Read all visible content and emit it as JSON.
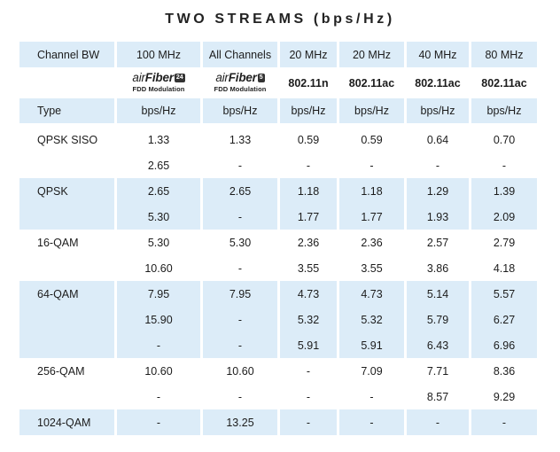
{
  "title": "TWO STREAMS (bps/Hz)",
  "header": {
    "label": "Channel BW",
    "cols": [
      "100 MHz",
      "All Channels",
      "20 MHz",
      "20 MHz",
      "40 MHz",
      "80 MHz"
    ]
  },
  "products": {
    "af24": {
      "prefix": "air",
      "main": "Fiber",
      "badge": "24",
      "sub": "FDD Modulation"
    },
    "af5": {
      "prefix": "air",
      "main": "Fiber",
      "badge": "5",
      "sub": "FDD Modulation"
    },
    "std": [
      "802.11n",
      "802.11ac",
      "802.11ac",
      "802.11ac"
    ]
  },
  "units": {
    "label": "Type",
    "cols": [
      "bps/Hz",
      "bps/Hz",
      "bps/Hz",
      "bps/Hz",
      "bps/Hz",
      "bps/Hz"
    ]
  },
  "rows": [
    {
      "label": "QPSK SISO",
      "shade": false,
      "vals": [
        "1.33",
        "1.33",
        "0.59",
        "0.59",
        "0.64",
        "0.70"
      ]
    },
    {
      "label": "",
      "shade": false,
      "vals": [
        "2.65",
        "-",
        "-",
        "-",
        "-",
        "-"
      ]
    },
    {
      "label": "QPSK",
      "shade": true,
      "vals": [
        "2.65",
        "2.65",
        "1.18",
        "1.18",
        "1.29",
        "1.39"
      ]
    },
    {
      "label": "",
      "shade": true,
      "vals": [
        "5.30",
        "-",
        "1.77",
        "1.77",
        "1.93",
        "2.09"
      ]
    },
    {
      "label": "16-QAM",
      "shade": false,
      "vals": [
        "5.30",
        "5.30",
        "2.36",
        "2.36",
        "2.57",
        "2.79"
      ]
    },
    {
      "label": "",
      "shade": false,
      "vals": [
        "10.60",
        "-",
        "3.55",
        "3.55",
        "3.86",
        "4.18"
      ]
    },
    {
      "label": "64-QAM",
      "shade": true,
      "vals": [
        "7.95",
        "7.95",
        "4.73",
        "4.73",
        "5.14",
        "5.57"
      ]
    },
    {
      "label": "",
      "shade": true,
      "vals": [
        "15.90",
        "-",
        "5.32",
        "5.32",
        "5.79",
        "6.27"
      ]
    },
    {
      "label": "",
      "shade": true,
      "vals": [
        "-",
        "-",
        "5.91",
        "5.91",
        "6.43",
        "6.96"
      ]
    },
    {
      "label": "256-QAM",
      "shade": false,
      "vals": [
        "10.60",
        "10.60",
        "-",
        "7.09",
        "7.71",
        "8.36"
      ]
    },
    {
      "label": "",
      "shade": false,
      "vals": [
        "-",
        "-",
        "-",
        "-",
        "8.57",
        "9.29"
      ]
    },
    {
      "label": "1024-QAM",
      "shade": true,
      "vals": [
        "-",
        "13.25",
        "-",
        "-",
        "-",
        "-"
      ]
    }
  ]
}
